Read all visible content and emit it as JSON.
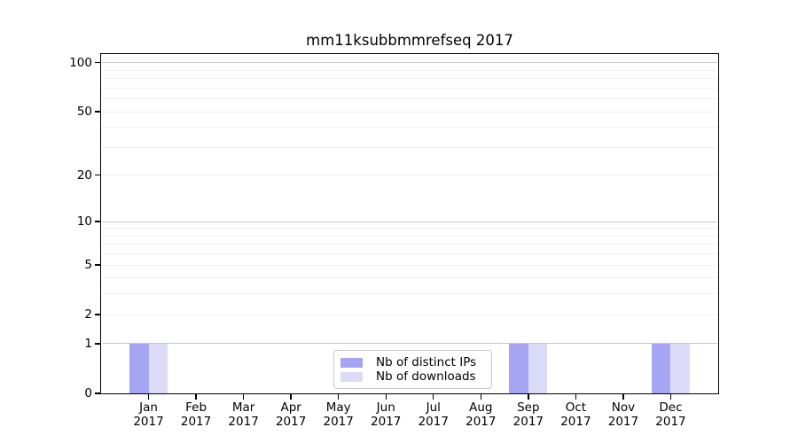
{
  "chart_data": {
    "type": "bar",
    "title": "mm11ksubbmmrefseq 2017",
    "categories": [
      "Jan 2017",
      "Feb 2017",
      "Mar 2017",
      "Apr 2017",
      "May 2017",
      "Jun 2017",
      "Jul 2017",
      "Aug 2017",
      "Sep 2017",
      "Oct 2017",
      "Nov 2017",
      "Dec 2017"
    ],
    "series": [
      {
        "name": "Nb of distinct IPs",
        "color": "#a5a5f3",
        "values": [
          1,
          0,
          0,
          0,
          0,
          0,
          0,
          0,
          1,
          0,
          0,
          1
        ]
      },
      {
        "name": "Nb of downloads",
        "color": "#dcdcf9",
        "values": [
          1,
          0,
          0,
          0,
          0,
          0,
          0,
          0,
          1,
          0,
          0,
          1
        ]
      }
    ],
    "xlabel": "",
    "ylabel": "",
    "y_axis": {
      "scale": "log1p",
      "ticks": [
        0,
        1,
        2,
        5,
        10,
        20,
        50,
        100
      ],
      "ylim": [
        0,
        113
      ]
    },
    "grid": {
      "major_values": [
        1,
        10,
        100
      ],
      "minor_values": [
        2,
        3,
        4,
        5,
        6,
        7,
        8,
        9,
        20,
        30,
        40,
        50,
        60,
        70,
        80,
        90
      ],
      "major_color": "#c8c8c8",
      "minor_color": "#f0f0f0"
    },
    "legend_position": "lower center",
    "colors": {
      "background": "#ffffff",
      "axis": "#000000",
      "text": "#000000",
      "legend_border": "#c9c9c9"
    }
  }
}
